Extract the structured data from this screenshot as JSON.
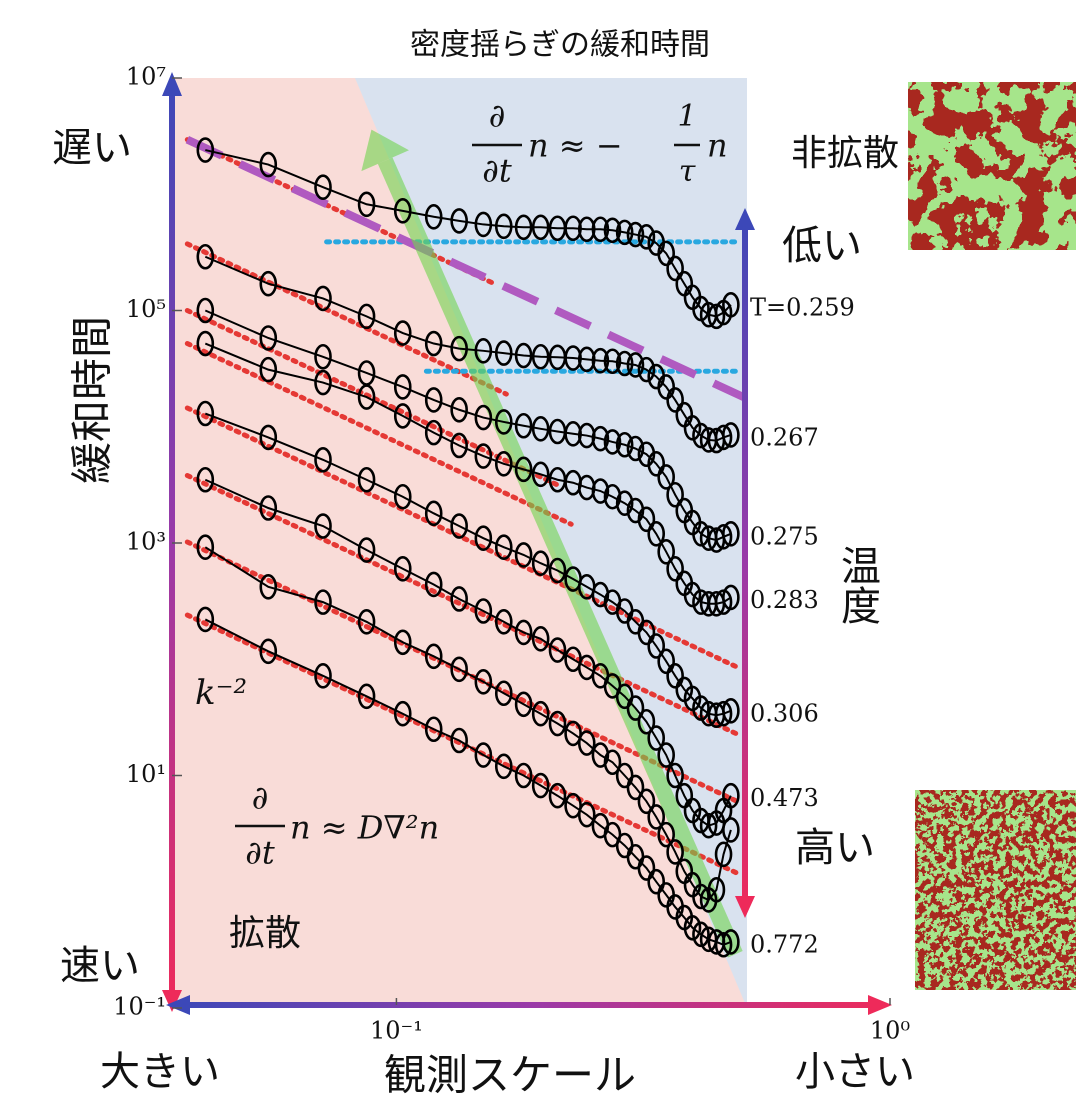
{
  "chart_data": {
    "type": "line",
    "title": "密度揺らぎの緩和時間",
    "x_label": "観測スケール",
    "y_label": "緩和時間",
    "log_x": true,
    "log_y": true,
    "xlim": [
      0.0351,
      1
    ],
    "xticks": [
      {
        "value": 0.1,
        "label": "10⁻¹"
      },
      {
        "value": 1,
        "label": "10⁰"
      }
    ],
    "ylim": [
      0.1,
      10000000
    ],
    "yticks": [
      {
        "value": 10000000,
        "label": "10⁷"
      },
      {
        "value": 100000,
        "label": "10⁵"
      },
      {
        "value": 1000,
        "label": "10³"
      },
      {
        "value": 10,
        "label": "10¹"
      },
      {
        "value": 0.1,
        "label": "10⁻¹"
      }
    ],
    "x": [
      0.041,
      0.055,
      0.071,
      0.087,
      0.103,
      0.119,
      0.134,
      0.15,
      0.165,
      0.181,
      0.196,
      0.212,
      0.228,
      0.243,
      0.259,
      0.274,
      0.29,
      0.305,
      0.321,
      0.336,
      0.352,
      0.367,
      0.383,
      0.398,
      0.414,
      0.429,
      0.445,
      0.46,
      0.476
    ],
    "series": [
      {
        "name": "T=0.259",
        "color": "#000000",
        "values": [
          2400000,
          1800000,
          1150000,
          820000,
          720000,
          640000,
          590000,
          550000,
          530000,
          520000,
          520000,
          510000,
          510000,
          500000,
          500000,
          490000,
          470000,
          450000,
          430000,
          380000,
          310000,
          230000,
          170000,
          130000,
          104000,
          92000,
          89000,
          96000,
          112000
        ]
      },
      {
        "name": "0.267",
        "color": "#000000",
        "values": [
          290000,
          170000,
          127000,
          89000,
          64000,
          52000,
          47000,
          45000,
          43000,
          41000,
          40000,
          39600,
          39000,
          38000,
          37000,
          36600,
          35000,
          34000,
          31000,
          27000,
          22000,
          17000,
          12700,
          9800,
          8400,
          7700,
          7600,
          8100,
          8500
        ]
      },
      {
        "name": "0.275",
        "color": "#000000",
        "values": [
          100000,
          58000,
          40000,
          29000,
          22000,
          17000,
          14000,
          12000,
          11000,
          10200,
          9600,
          9100,
          8700,
          8400,
          7900,
          7400,
          7000,
          6500,
          5800,
          4800,
          3700,
          2600,
          1900,
          1500,
          1200,
          1100,
          1060,
          1130,
          1200
        ]
      },
      {
        "name": "0.283",
        "color": "#000000",
        "values": [
          52000,
          31000,
          24000,
          18000,
          12400,
          8900,
          6900,
          5600,
          4800,
          4300,
          3900,
          3500,
          3300,
          3000,
          2800,
          2500,
          2200,
          1900,
          1600,
          1200,
          840,
          600,
          450,
          360,
          310,
          300,
          300,
          310,
          340
        ]
      },
      {
        "name": "0.306",
        "color": "#000000",
        "values": [
          13000,
          8100,
          5200,
          3500,
          2500,
          1800,
          1400,
          1100,
          920,
          790,
          670,
          580,
          490,
          420,
          360,
          310,
          260,
          210,
          170,
          130,
          96,
          72,
          55,
          46,
          38,
          34,
          33,
          34,
          36
        ]
      },
      {
        "name": "0.473",
        "color": "#000000",
        "values": [
          3500,
          2000,
          1400,
          870,
          600,
          440,
          330,
          260,
          210,
          170,
          150,
          120,
          100,
          85,
          72,
          59,
          48,
          38,
          29,
          21,
          15,
          10,
          6.7,
          5.0,
          4.1,
          3.7,
          3.9,
          5.0,
          6.7
        ]
      },
      {
        "name": null,
        "color": "#000000",
        "values": [
          920,
          420,
          310,
          210,
          140,
          106,
          82,
          64,
          51,
          41,
          34,
          28,
          23,
          19,
          15,
          13,
          10,
          7.9,
          6.0,
          4.4,
          3.1,
          2.2,
          1.5,
          1.15,
          0.91,
          0.85,
          1.04,
          2.1,
          3.4
        ]
      },
      {
        "name": "0.772",
        "color": "#000000",
        "values": [
          220,
          117,
          72,
          48,
          34,
          25,
          20,
          15,
          12,
          10,
          8.2,
          6.7,
          5.5,
          4.6,
          3.7,
          3.1,
          2.5,
          2.0,
          1.6,
          1.22,
          0.94,
          0.74,
          0.6,
          0.49,
          0.43,
          0.39,
          0.37,
          0.35,
          0.37
        ]
      }
    ],
    "reference_lines": [
      {
        "style": "dotted",
        "color": "#e53935",
        "x": [
          0.0377,
          0.156
        ],
        "values": [
          2950000,
          174000
        ]
      },
      {
        "style": "dotted",
        "color": "#e53935",
        "x": [
          0.0377,
          0.167
        ],
        "values": [
          374000,
          19100
        ]
      },
      {
        "style": "dotted",
        "color": "#e53935",
        "x": [
          0.0377,
          0.215
        ],
        "values": [
          100000,
          3070
        ]
      },
      {
        "style": "dotted",
        "color": "#e53935",
        "x": [
          0.0377,
          0.226
        ],
        "values": [
          52000,
          1450
        ]
      },
      {
        "style": "dotted",
        "color": "#e53935",
        "x": [
          0.0377,
          0.486
        ],
        "values": [
          14500,
          87
        ]
      },
      {
        "style": "dotted",
        "color": "#e53935",
        "x": [
          0.0377,
          0.498
        ],
        "values": [
          3810,
          22
        ]
      },
      {
        "style": "dotted",
        "color": "#e53935",
        "x": [
          0.0377,
          0.498
        ],
        "values": [
          1020,
          5.8
        ]
      },
      {
        "style": "dotted",
        "color": "#e53935",
        "x": [
          0.0377,
          0.498
        ],
        "values": [
          240,
          1.4
        ]
      },
      {
        "style": "dotted",
        "color": "#29a8e0",
        "x": [
          0.0722,
          0.486
        ],
        "values": [
          389000,
          389000
        ]
      },
      {
        "style": "dotted",
        "color": "#29a8e0",
        "x": [
          0.115,
          0.486
        ],
        "values": [
          30000,
          30000
        ]
      },
      {
        "style": "dashed",
        "color": "#b05ac0",
        "x": [
          0.0377,
          0.509
        ],
        "values": [
          2950000,
          17700
        ]
      },
      {
        "style": "arrow",
        "color": "#6fd34f",
        "x": [
          0.486,
          0.089
        ],
        "values": [
          0.29,
          3600000
        ]
      }
    ],
    "annotations": {
      "slow": "遅い",
      "fast": "速い",
      "large": "大きい",
      "small": "小さい",
      "low": "低い",
      "high": "高い",
      "temperature": "温度",
      "nondiffusive": "非拡散",
      "diffusive": "拡散",
      "power_law": "k⁻²",
      "nondiffusive_equation": {
        "numerator": "∂",
        "denominator": "∂t",
        "middle": "n ≈ −",
        "numerator2": "1",
        "denominator2": "τ",
        "tail": "n"
      },
      "diffusive_equation": {
        "numerator": "∂",
        "denominator": "∂t",
        "tail": "n ≈ D∇²n"
      }
    }
  }
}
